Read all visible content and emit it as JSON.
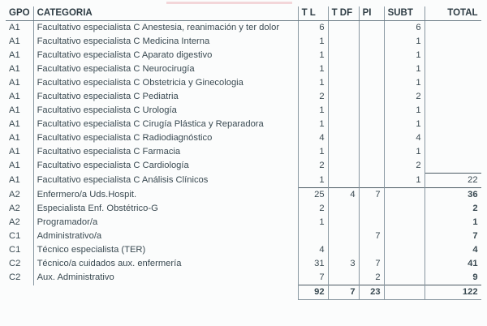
{
  "headers": {
    "gpo": "GPO",
    "categoria": "CATEGORIA",
    "tl": "T L",
    "tdf": "T DF",
    "pi": "PI",
    "subt": "SUBT",
    "total": "TOTAL"
  },
  "rows": [
    {
      "gpo": "A1",
      "categoria": "Facultativo especialista C Anestesia, reanimación y ter dolor",
      "tl": "6",
      "tdf": "",
      "pi": "",
      "subt": "6",
      "total": ""
    },
    {
      "gpo": "A1",
      "categoria": "Facultativo especialista C Medicina Interna",
      "tl": "1",
      "tdf": "",
      "pi": "",
      "subt": "1",
      "total": ""
    },
    {
      "gpo": "A1",
      "categoria": "Facultativo especialista C Aparato digestivo",
      "tl": "1",
      "tdf": "",
      "pi": "",
      "subt": "1",
      "total": ""
    },
    {
      "gpo": "A1",
      "categoria": "Facultativo especialista C Neurocirugía",
      "tl": "1",
      "tdf": "",
      "pi": "",
      "subt": "1",
      "total": ""
    },
    {
      "gpo": "A1",
      "categoria": "Facultativo especialista C Obstetricia y Ginecologia",
      "tl": "1",
      "tdf": "",
      "pi": "",
      "subt": "1",
      "total": ""
    },
    {
      "gpo": "A1",
      "categoria": "Facultativo especialista C Pediatria",
      "tl": "2",
      "tdf": "",
      "pi": "",
      "subt": "2",
      "total": ""
    },
    {
      "gpo": "A1",
      "categoria": "Facultativo especialista C Urología",
      "tl": "1",
      "tdf": "",
      "pi": "",
      "subt": "1",
      "total": ""
    },
    {
      "gpo": "A1",
      "categoria": "Facultativo especialista C Cirugía Plástica y Reparadora",
      "tl": "1",
      "tdf": "",
      "pi": "",
      "subt": "1",
      "total": ""
    },
    {
      "gpo": "A1",
      "categoria": "Facultativo especialista C Radiodiagnóstico",
      "tl": "4",
      "tdf": "",
      "pi": "",
      "subt": "4",
      "total": ""
    },
    {
      "gpo": "A1",
      "categoria": "Facultativo especialista C Farmacia",
      "tl": "1",
      "tdf": "",
      "pi": "",
      "subt": "1",
      "total": ""
    },
    {
      "gpo": "A1",
      "categoria": "Facultativo especialista C Cardiología",
      "tl": "2",
      "tdf": "",
      "pi": "",
      "subt": "2",
      "total": ""
    },
    {
      "gpo": "A1",
      "categoria": "Facultativo especialista C Análisis Clínicos",
      "tl": "1",
      "tdf": "",
      "pi": "",
      "subt": "1",
      "total": "22"
    },
    {
      "gpo": "A2",
      "categoria": "Enfermero/a Uds.Hospit.",
      "tl": "25",
      "tdf": "4",
      "pi": "7",
      "subt": "",
      "total": "36"
    },
    {
      "gpo": "A2",
      "categoria": "Especialista Enf. Obstétrico-G",
      "tl": "2",
      "tdf": "",
      "pi": "",
      "subt": "",
      "total": "2"
    },
    {
      "gpo": "A2",
      "categoria": "Programador/a",
      "tl": "1",
      "tdf": "",
      "pi": "",
      "subt": "",
      "total": "1"
    },
    {
      "gpo": "C1",
      "categoria": "Administrativo/a",
      "tl": "",
      "tdf": "",
      "pi": "7",
      "subt": "",
      "total": "7"
    },
    {
      "gpo": "C1",
      "categoria": "Técnico especialista (TER)",
      "tl": "4",
      "tdf": "",
      "pi": "",
      "subt": "",
      "total": "4"
    },
    {
      "gpo": "C2",
      "categoria": "Técnico/a cuidados aux. enfermería",
      "tl": "31",
      "tdf": "3",
      "pi": "7",
      "subt": "",
      "total": "41"
    },
    {
      "gpo": "C2",
      "categoria": "Aux. Administrativo",
      "tl": "7",
      "tdf": "",
      "pi": "2",
      "subt": "",
      "total": "9"
    }
  ],
  "totals": {
    "tl": "92",
    "tdf": "7",
    "pi": "23",
    "subt": "",
    "total": "122"
  }
}
